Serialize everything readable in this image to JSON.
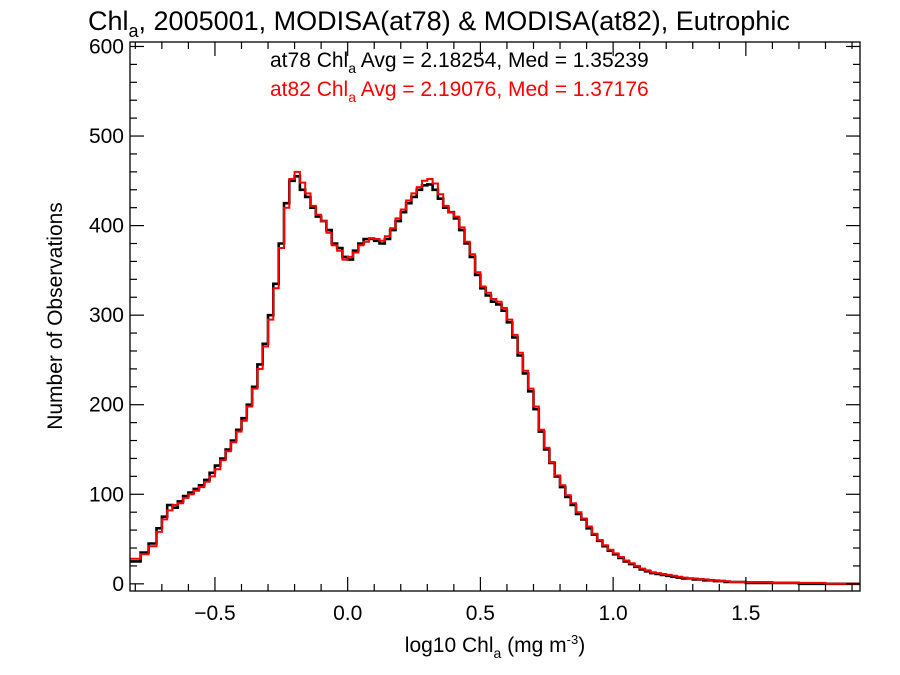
{
  "colors": {
    "background": "#ffffff",
    "axis": "#000000",
    "at78": "#000000",
    "at82": "#ff0000"
  },
  "chart_data": {
    "type": "line",
    "step": true,
    "title": {
      "pre": "Chl",
      "sub": "a",
      "post": ", 2005001, MODISA(at78) & MODISA(at82), Eutrophic"
    },
    "annotations": [
      {
        "series": "at78",
        "pre": "at78 Chl",
        "sub": "a",
        "post": " Avg = 2.18254, Med = 1.35239",
        "color": "#000000"
      },
      {
        "series": "at82",
        "pre": "at82 Chl",
        "sub": "a",
        "post": " Avg = 2.19076, Med = 1.37176",
        "color": "#ff0000"
      }
    ],
    "xlabel": {
      "pre": "log10 Chl",
      "sub": "a",
      "mid": " (mg m",
      "sup": "-3",
      "post": ")"
    },
    "ylabel": "Number of Observations",
    "xlim": [
      -0.82,
      1.93
    ],
    "ylim": [
      -8,
      605
    ],
    "xticks": [
      {
        "value": -0.5,
        "label": "−0.5"
      },
      {
        "value": 0.0,
        "label": "0.0"
      },
      {
        "value": 0.5,
        "label": "0.5"
      },
      {
        "value": 1.0,
        "label": "1.0"
      },
      {
        "value": 1.5,
        "label": "1.5"
      }
    ],
    "yticks": [
      {
        "value": 0,
        "label": "0"
      },
      {
        "value": 100,
        "label": "100"
      },
      {
        "value": 200,
        "label": "200"
      },
      {
        "value": 300,
        "label": "300"
      },
      {
        "value": 400,
        "label": "400"
      },
      {
        "value": 500,
        "label": "500"
      },
      {
        "value": 600,
        "label": "600"
      }
    ],
    "grid": false,
    "series": [
      {
        "id": "at78",
        "color": "#000000",
        "points": [
          [
            -0.82,
            25
          ],
          [
            -0.78,
            35
          ],
          [
            -0.75,
            45
          ],
          [
            -0.72,
            62
          ],
          [
            -0.7,
            75
          ],
          [
            -0.68,
            88
          ],
          [
            -0.66,
            85
          ],
          [
            -0.64,
            92
          ],
          [
            -0.62,
            98
          ],
          [
            -0.6,
            102
          ],
          [
            -0.58,
            106
          ],
          [
            -0.56,
            110
          ],
          [
            -0.54,
            116
          ],
          [
            -0.52,
            124
          ],
          [
            -0.5,
            132
          ],
          [
            -0.48,
            140
          ],
          [
            -0.46,
            150
          ],
          [
            -0.44,
            160
          ],
          [
            -0.42,
            172
          ],
          [
            -0.4,
            185
          ],
          [
            -0.38,
            200
          ],
          [
            -0.36,
            220
          ],
          [
            -0.34,
            245
          ],
          [
            -0.32,
            268
          ],
          [
            -0.3,
            300
          ],
          [
            -0.28,
            335
          ],
          [
            -0.26,
            380
          ],
          [
            -0.24,
            425
          ],
          [
            -0.22,
            450
          ],
          [
            -0.2,
            455
          ],
          [
            -0.18,
            440
          ],
          [
            -0.16,
            432
          ],
          [
            -0.14,
            420
          ],
          [
            -0.12,
            410
          ],
          [
            -0.1,
            405
          ],
          [
            -0.08,
            395
          ],
          [
            -0.06,
            380
          ],
          [
            -0.04,
            375
          ],
          [
            -0.02,
            365
          ],
          [
            0.0,
            362
          ],
          [
            0.02,
            372
          ],
          [
            0.04,
            380
          ],
          [
            0.06,
            385
          ],
          [
            0.08,
            385
          ],
          [
            0.1,
            383
          ],
          [
            0.12,
            380
          ],
          [
            0.14,
            385
          ],
          [
            0.16,
            395
          ],
          [
            0.18,
            405
          ],
          [
            0.2,
            415
          ],
          [
            0.22,
            425
          ],
          [
            0.24,
            432
          ],
          [
            0.26,
            440
          ],
          [
            0.28,
            445
          ],
          [
            0.3,
            446
          ],
          [
            0.32,
            440
          ],
          [
            0.34,
            430
          ],
          [
            0.36,
            420
          ],
          [
            0.38,
            415
          ],
          [
            0.4,
            408
          ],
          [
            0.42,
            395
          ],
          [
            0.44,
            380
          ],
          [
            0.46,
            365
          ],
          [
            0.48,
            345
          ],
          [
            0.5,
            330
          ],
          [
            0.52,
            322
          ],
          [
            0.54,
            315
          ],
          [
            0.56,
            312
          ],
          [
            0.58,
            305
          ],
          [
            0.6,
            292
          ],
          [
            0.62,
            275
          ],
          [
            0.64,
            255
          ],
          [
            0.66,
            235
          ],
          [
            0.68,
            215
          ],
          [
            0.7,
            195
          ],
          [
            0.72,
            170
          ],
          [
            0.74,
            150
          ],
          [
            0.76,
            135
          ],
          [
            0.78,
            120
          ],
          [
            0.8,
            108
          ],
          [
            0.82,
            97
          ],
          [
            0.84,
            88
          ],
          [
            0.86,
            78
          ],
          [
            0.88,
            72
          ],
          [
            0.9,
            62
          ],
          [
            0.92,
            55
          ],
          [
            0.94,
            48
          ],
          [
            0.96,
            42
          ],
          [
            0.98,
            37
          ],
          [
            1.0,
            33
          ],
          [
            1.02,
            29
          ],
          [
            1.04,
            25
          ],
          [
            1.06,
            22
          ],
          [
            1.08,
            19
          ],
          [
            1.1,
            16
          ],
          [
            1.12,
            14
          ],
          [
            1.14,
            12
          ],
          [
            1.16,
            11
          ],
          [
            1.18,
            10
          ],
          [
            1.2,
            9
          ],
          [
            1.22,
            8
          ],
          [
            1.24,
            7
          ],
          [
            1.26,
            6
          ],
          [
            1.28,
            6
          ],
          [
            1.3,
            5
          ],
          [
            1.32,
            5
          ],
          [
            1.34,
            4
          ],
          [
            1.36,
            4
          ],
          [
            1.38,
            3
          ],
          [
            1.4,
            3
          ],
          [
            1.42,
            2
          ],
          [
            1.44,
            2
          ],
          [
            1.46,
            2
          ],
          [
            1.48,
            2
          ],
          [
            1.5,
            1
          ],
          [
            1.6,
            1
          ],
          [
            1.7,
            0
          ],
          [
            1.8,
            0
          ],
          [
            1.9,
            0
          ]
        ]
      },
      {
        "id": "at82",
        "color": "#ff0000",
        "points": [
          [
            -0.82,
            28
          ],
          [
            -0.78,
            33
          ],
          [
            -0.75,
            42
          ],
          [
            -0.72,
            58
          ],
          [
            -0.7,
            72
          ],
          [
            -0.68,
            82
          ],
          [
            -0.66,
            88
          ],
          [
            -0.64,
            90
          ],
          [
            -0.62,
            96
          ],
          [
            -0.6,
            100
          ],
          [
            -0.58,
            104
          ],
          [
            -0.56,
            108
          ],
          [
            -0.54,
            114
          ],
          [
            -0.52,
            120
          ],
          [
            -0.5,
            128
          ],
          [
            -0.48,
            138
          ],
          [
            -0.46,
            148
          ],
          [
            -0.44,
            158
          ],
          [
            -0.42,
            170
          ],
          [
            -0.4,
            182
          ],
          [
            -0.38,
            198
          ],
          [
            -0.36,
            218
          ],
          [
            -0.34,
            240
          ],
          [
            -0.32,
            265
          ],
          [
            -0.3,
            295
          ],
          [
            -0.28,
            330
          ],
          [
            -0.26,
            375
          ],
          [
            -0.24,
            420
          ],
          [
            -0.22,
            452
          ],
          [
            -0.2,
            460
          ],
          [
            -0.18,
            448
          ],
          [
            -0.16,
            436
          ],
          [
            -0.14,
            422
          ],
          [
            -0.12,
            412
          ],
          [
            -0.1,
            405
          ],
          [
            -0.08,
            392
          ],
          [
            -0.06,
            378
          ],
          [
            -0.04,
            372
          ],
          [
            -0.02,
            362
          ],
          [
            0.0,
            365
          ],
          [
            0.02,
            370
          ],
          [
            0.04,
            378
          ],
          [
            0.06,
            382
          ],
          [
            0.08,
            386
          ],
          [
            0.1,
            385
          ],
          [
            0.12,
            383
          ],
          [
            0.14,
            388
          ],
          [
            0.16,
            397
          ],
          [
            0.18,
            408
          ],
          [
            0.2,
            418
          ],
          [
            0.22,
            428
          ],
          [
            0.24,
            436
          ],
          [
            0.26,
            443
          ],
          [
            0.28,
            450
          ],
          [
            0.3,
            452
          ],
          [
            0.32,
            447
          ],
          [
            0.34,
            435
          ],
          [
            0.36,
            422
          ],
          [
            0.38,
            415
          ],
          [
            0.4,
            410
          ],
          [
            0.42,
            398
          ],
          [
            0.44,
            382
          ],
          [
            0.46,
            368
          ],
          [
            0.48,
            348
          ],
          [
            0.5,
            332
          ],
          [
            0.52,
            325
          ],
          [
            0.54,
            318
          ],
          [
            0.56,
            315
          ],
          [
            0.58,
            308
          ],
          [
            0.6,
            295
          ],
          [
            0.62,
            278
          ],
          [
            0.64,
            258
          ],
          [
            0.66,
            238
          ],
          [
            0.68,
            218
          ],
          [
            0.7,
            198
          ],
          [
            0.72,
            172
          ],
          [
            0.74,
            152
          ],
          [
            0.76,
            136
          ],
          [
            0.78,
            121
          ],
          [
            0.8,
            110
          ],
          [
            0.82,
            99
          ],
          [
            0.84,
            90
          ],
          [
            0.86,
            80
          ],
          [
            0.88,
            73
          ],
          [
            0.9,
            64
          ],
          [
            0.92,
            56
          ],
          [
            0.94,
            49
          ],
          [
            0.96,
            43
          ],
          [
            0.98,
            38
          ],
          [
            1.0,
            34
          ],
          [
            1.02,
            30
          ],
          [
            1.04,
            26
          ],
          [
            1.06,
            23
          ],
          [
            1.08,
            20
          ],
          [
            1.1,
            17
          ],
          [
            1.12,
            15
          ],
          [
            1.14,
            13
          ],
          [
            1.16,
            12
          ],
          [
            1.18,
            11
          ],
          [
            1.2,
            10
          ],
          [
            1.22,
            9
          ],
          [
            1.24,
            8
          ],
          [
            1.26,
            7
          ],
          [
            1.28,
            6
          ],
          [
            1.3,
            6
          ],
          [
            1.32,
            5
          ],
          [
            1.34,
            5
          ],
          [
            1.36,
            4
          ],
          [
            1.38,
            4
          ],
          [
            1.4,
            3
          ],
          [
            1.42,
            3
          ],
          [
            1.44,
            2
          ],
          [
            1.46,
            2
          ],
          [
            1.48,
            2
          ],
          [
            1.5,
            2
          ],
          [
            1.6,
            1
          ],
          [
            1.7,
            1
          ],
          [
            1.8,
            0
          ],
          [
            1.9,
            0
          ]
        ]
      }
    ]
  }
}
